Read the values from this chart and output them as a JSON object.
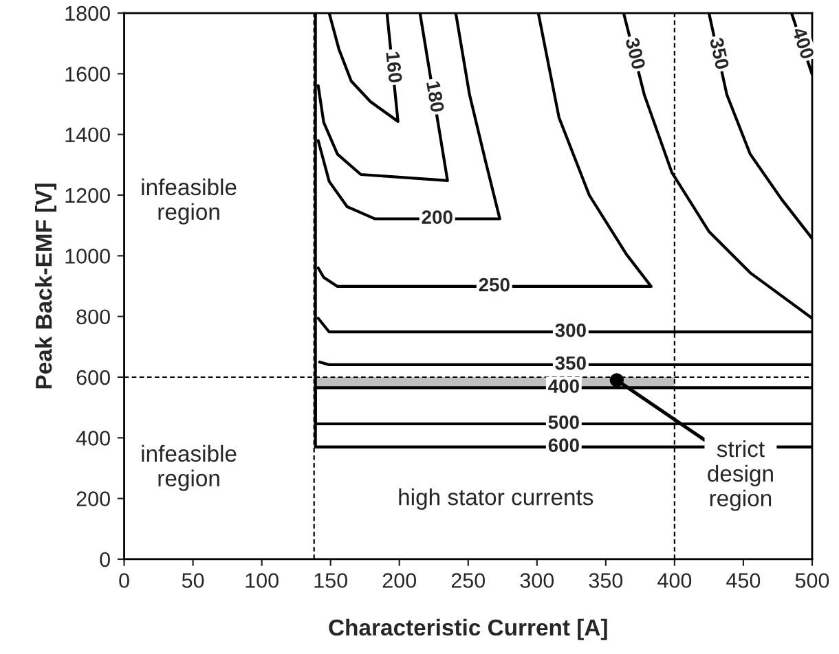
{
  "chart_data": {
    "type": "line",
    "xlabel": "Characteristic Current [A]",
    "ylabel": "Peak Back-EMF [V]",
    "xlim": [
      0,
      500
    ],
    "xticks": [
      0,
      50,
      100,
      150,
      200,
      250,
      300,
      350,
      400,
      450,
      500
    ],
    "ylim": [
      0,
      1800
    ],
    "yticks": [
      0,
      200,
      400,
      600,
      800,
      1000,
      1200,
      1400,
      1600,
      1800
    ],
    "grid": false,
    "legend": false,
    "marker": "none",
    "line_style": "solid",
    "series": [
      {
        "name": "160",
        "color": "#000000",
        "x": [
          149,
          156,
          165,
          179,
          199,
          191
        ],
        "values": [
          1800,
          1682,
          1576,
          1508,
          1443,
          1800
        ]
      },
      {
        "name": "180",
        "color": "#000000",
        "x": [
          141,
          145,
          155,
          172,
          235,
          215
        ],
        "values": [
          1561,
          1440,
          1335,
          1268,
          1248,
          1800
        ]
      },
      {
        "name": "200",
        "color": "#000000",
        "x": [
          141,
          149,
          162,
          182,
          273,
          263,
          251,
          241
        ],
        "values": [
          1380,
          1245,
          1162,
          1122,
          1122,
          1305,
          1531,
          1800
        ]
      },
      {
        "name": "250",
        "color": "#000000",
        "x": [
          141,
          145,
          155,
          383,
          365,
          338,
          316,
          301
        ],
        "values": [
          960,
          929,
          899,
          899,
          1005,
          1200,
          1456,
          1800
        ]
      },
      {
        "name": "300",
        "color": "#000000",
        "x": [
          363,
          378,
          398,
          425,
          455,
          500
        ],
        "values": [
          1800,
          1531,
          1275,
          1080,
          944,
          794
        ]
      },
      {
        "name": "300",
        "color": "#000000",
        "x": [
          141,
          149,
          500
        ],
        "values": [
          794,
          749,
          749
        ]
      },
      {
        "name": "350",
        "color": "#000000",
        "x": [
          425,
          438,
          455,
          478,
          500
        ],
        "values": [
          1800,
          1531,
          1335,
          1185,
          1057
        ]
      },
      {
        "name": "350",
        "color": "#000000",
        "x": [
          142,
          149,
          500
        ],
        "values": [
          650,
          641,
          641
        ]
      },
      {
        "name": "400",
        "color": "#000000",
        "x": [
          485,
          500
        ],
        "values": [
          1800,
          1598
        ]
      },
      {
        "name": "400",
        "color": "#000000",
        "x": [
          139,
          139,
          500
        ],
        "values": [
          1800,
          565,
          565
        ]
      },
      {
        "name": "500",
        "color": "#000000",
        "x": [
          139,
          139,
          500
        ],
        "values": [
          565,
          446,
          446
        ]
      },
      {
        "name": "600",
        "color": "#000000",
        "x": [
          139,
          139,
          500
        ],
        "values": [
          565,
          370,
          370
        ]
      },
      {
        "type": "scatter",
        "marker": "circle",
        "color": "#000000",
        "x": [
          358
        ],
        "values": [
          590
        ]
      }
    ],
    "ref_lines": [
      {
        "axis": "x",
        "value": 138,
        "color": "#000000",
        "line_style": "dashed"
      },
      {
        "axis": "x",
        "value": 400,
        "color": "#000000",
        "line_style": "dashed"
      },
      {
        "axis": "y",
        "value": 600,
        "color": "#000000",
        "line_style": "dashed"
      }
    ],
    "bands": [
      {
        "axis": "y",
        "from": 565,
        "to": 600,
        "color": "#c0c0c0"
      }
    ],
    "annotations": [
      "infeasible\nregion",
      "infeasible\nregion",
      "high stator currents",
      {
        "text": "strict\ndesign\nregion",
        "x": 358,
        "y": 590
      }
    ]
  }
}
